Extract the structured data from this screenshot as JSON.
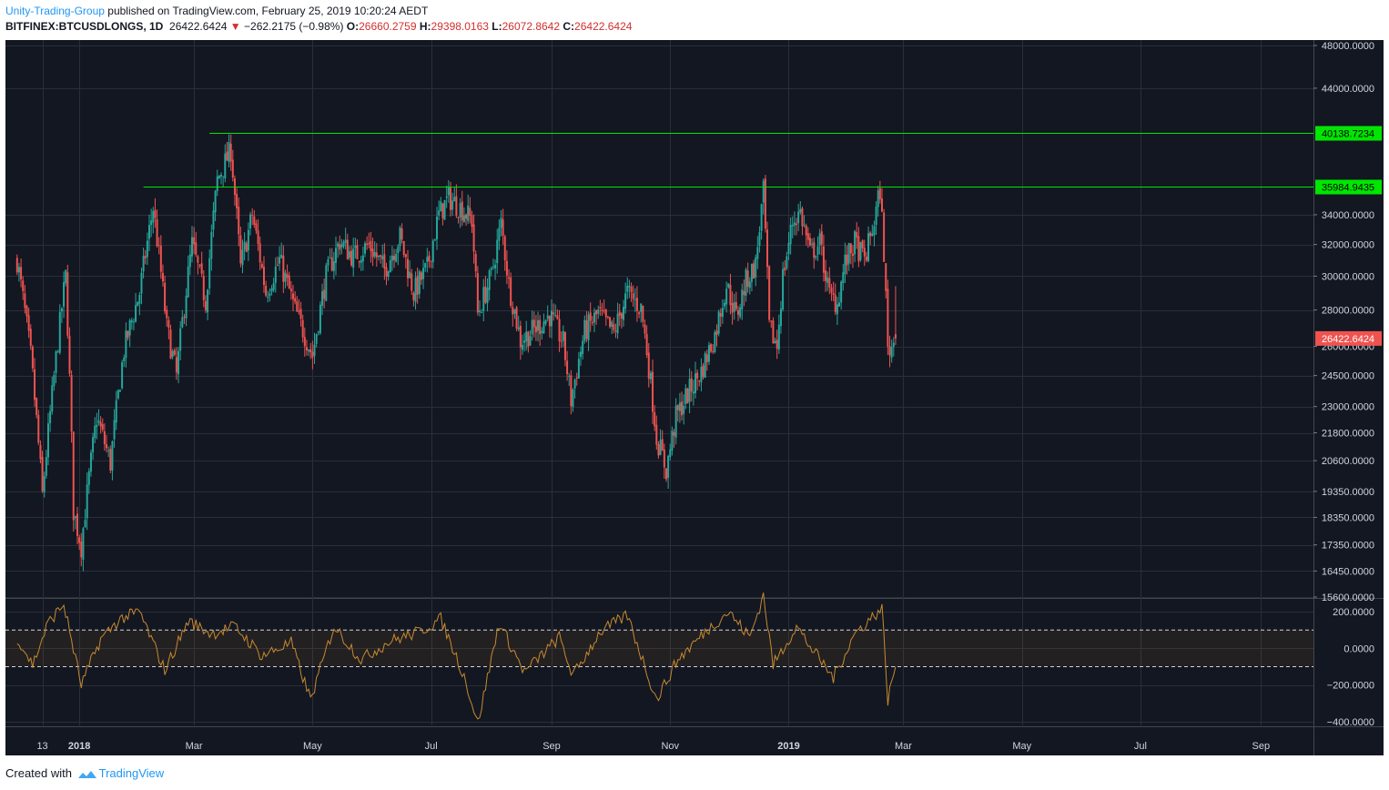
{
  "header": {
    "author": "Unity-Trading-Group",
    "published_text": "published on TradingView.com, February 25, 2019 10:20:24 AEDT",
    "symbol": "BITFINEX:BTCUSDLONGS",
    "interval": ", 1D",
    "last": "26422.6424",
    "change_arrow": "▼",
    "change": "−262.2175 (−0.98%)",
    "o_label": "O:",
    "o_value": "26660.2759",
    "h_label": "H:",
    "h_value": "29398.0163",
    "l_label": "L:",
    "l_value": "26072.8642",
    "c_label": "C:",
    "c_value": "26422.6424"
  },
  "footer": {
    "created_with": "Created with",
    "brand": "TradingView"
  },
  "colors": {
    "background": "#131722",
    "grid": "#2a2e39",
    "up": "#26a69a",
    "down": "#ef5350",
    "level_line": "#00e600",
    "oscillator": "#c68a2e",
    "axis_text": "#d1d4dc"
  },
  "chart_data": [
    {
      "type": "candlestick",
      "symbol": "BITFINEX:BTCUSDLONGS",
      "interval": "1D",
      "x_ticks": [
        "13",
        "2018",
        "Mar",
        "May",
        "Jul",
        "Sep",
        "Nov",
        "2019",
        "Mar",
        "May",
        "Jul",
        "Sep"
      ],
      "y_ticks": [
        "48000.0000",
        "44000.0000",
        "34000.0000",
        "32000.0000",
        "30000.0000",
        "28000.0000",
        "26000.0000",
        "24500.0000",
        "23000.0000",
        "21800.0000",
        "20600.0000",
        "19350.0000",
        "18350.0000",
        "17350.0000",
        "16450.0000",
        "15600.0000"
      ],
      "ylim": [
        15600,
        48000
      ],
      "scale": "log",
      "horizontal_levels": [
        {
          "value": 40138.7234,
          "label": "40138.7234"
        },
        {
          "value": 35984.9435,
          "label": "35984.9435"
        }
      ],
      "last_price": {
        "value": 26422.6424,
        "label": "26422.6424"
      },
      "trend_points": [
        {
          "date": "2017-11-30",
          "close": 31000
        },
        {
          "date": "2017-12-07",
          "close": 25500
        },
        {
          "date": "2017-12-13",
          "close": 19200
        },
        {
          "date": "2017-12-18",
          "close": 23500
        },
        {
          "date": "2017-12-25",
          "close": 30000
        },
        {
          "date": "2017-12-29",
          "close": 18600
        },
        {
          "date": "2018-01-02",
          "close": 17300
        },
        {
          "date": "2018-01-10",
          "close": 22500
        },
        {
          "date": "2018-01-17",
          "close": 20500
        },
        {
          "date": "2018-01-24",
          "close": 25800
        },
        {
          "date": "2018-02-01",
          "close": 29000
        },
        {
          "date": "2018-02-08",
          "close": 34500
        },
        {
          "date": "2018-02-15",
          "close": 27000
        },
        {
          "date": "2018-02-20",
          "close": 24500
        },
        {
          "date": "2018-02-28",
          "close": 32000
        },
        {
          "date": "2018-03-07",
          "close": 28500
        },
        {
          "date": "2018-03-13",
          "close": 36500
        },
        {
          "date": "2018-03-20",
          "close": 38800
        },
        {
          "date": "2018-03-25",
          "close": 30500
        },
        {
          "date": "2018-03-31",
          "close": 34000
        },
        {
          "date": "2018-04-07",
          "close": 29000
        },
        {
          "date": "2018-04-14",
          "close": 31000
        },
        {
          "date": "2018-04-22",
          "close": 28000
        },
        {
          "date": "2018-05-01",
          "close": 25500
        },
        {
          "date": "2018-05-08",
          "close": 30000
        },
        {
          "date": "2018-05-15",
          "close": 32200
        },
        {
          "date": "2018-05-22",
          "close": 31200
        },
        {
          "date": "2018-05-30",
          "close": 32000
        },
        {
          "date": "2018-06-07",
          "close": 30400
        },
        {
          "date": "2018-06-15",
          "close": 32500
        },
        {
          "date": "2018-06-22",
          "close": 29000
        },
        {
          "date": "2018-06-29",
          "close": 30500
        },
        {
          "date": "2018-07-05",
          "close": 34000
        },
        {
          "date": "2018-07-10",
          "close": 35200
        },
        {
          "date": "2018-07-17",
          "close": 34400
        },
        {
          "date": "2018-07-22",
          "close": 33600
        },
        {
          "date": "2018-07-25",
          "close": 27800
        },
        {
          "date": "2018-08-01",
          "close": 30000
        },
        {
          "date": "2018-08-06",
          "close": 33400
        },
        {
          "date": "2018-08-10",
          "close": 29500
        },
        {
          "date": "2018-08-16",
          "close": 26300
        },
        {
          "date": "2018-08-24",
          "close": 27000
        },
        {
          "date": "2018-08-31",
          "close": 27700
        },
        {
          "date": "2018-09-07",
          "close": 26200
        },
        {
          "date": "2018-09-11",
          "close": 23300
        },
        {
          "date": "2018-09-18",
          "close": 26800
        },
        {
          "date": "2018-09-25",
          "close": 27800
        },
        {
          "date": "2018-10-03",
          "close": 26700
        },
        {
          "date": "2018-10-10",
          "close": 29000
        },
        {
          "date": "2018-10-17",
          "close": 28100
        },
        {
          "date": "2018-10-20",
          "close": 25800
        },
        {
          "date": "2018-10-25",
          "close": 21600
        },
        {
          "date": "2018-10-30",
          "close": 20200
        },
        {
          "date": "2018-11-04",
          "close": 22500
        },
        {
          "date": "2018-11-10",
          "close": 23600
        },
        {
          "date": "2018-11-17",
          "close": 24700
        },
        {
          "date": "2018-11-24",
          "close": 26600
        },
        {
          "date": "2018-11-30",
          "close": 29500
        },
        {
          "date": "2018-12-05",
          "close": 27600
        },
        {
          "date": "2018-12-10",
          "close": 29700
        },
        {
          "date": "2018-12-15",
          "close": 30700
        },
        {
          "date": "2018-12-19",
          "close": 35600
        },
        {
          "date": "2018-12-22",
          "close": 27000
        },
        {
          "date": "2018-12-26",
          "close": 26000
        },
        {
          "date": "2018-12-29",
          "close": 30000
        },
        {
          "date": "2019-01-03",
          "close": 33500
        },
        {
          "date": "2019-01-07",
          "close": 34200
        },
        {
          "date": "2019-01-12",
          "close": 31400
        },
        {
          "date": "2019-01-17",
          "close": 32100
        },
        {
          "date": "2019-01-22",
          "close": 28800
        },
        {
          "date": "2019-01-26",
          "close": 28400
        },
        {
          "date": "2019-01-30",
          "close": 30800
        },
        {
          "date": "2019-02-04",
          "close": 32100
        },
        {
          "date": "2019-02-09",
          "close": 31000
        },
        {
          "date": "2019-02-14",
          "close": 33500
        },
        {
          "date": "2019-02-17",
          "close": 35800
        },
        {
          "date": "2019-02-19",
          "close": 31500
        },
        {
          "date": "2019-02-21",
          "close": 25800
        },
        {
          "date": "2019-02-23",
          "close": 26000
        },
        {
          "date": "2019-02-25",
          "close": 26422.6424
        }
      ]
    },
    {
      "type": "line",
      "name": "oscillator",
      "y_ticks": [
        "200.0000",
        "0.0000",
        "−200.0000",
        "−400.0000"
      ],
      "ylim": [
        -420,
        260
      ],
      "band": [
        -100,
        100
      ],
      "trend_points": [
        {
          "date": "2017-11-30",
          "value": 60
        },
        {
          "date": "2017-12-08",
          "value": -90
        },
        {
          "date": "2017-12-16",
          "value": 140
        },
        {
          "date": "2017-12-24",
          "value": 240
        },
        {
          "date": "2018-01-02",
          "value": -200
        },
        {
          "date": "2018-01-12",
          "value": 50
        },
        {
          "date": "2018-01-22",
          "value": 160
        },
        {
          "date": "2018-02-01",
          "value": 200
        },
        {
          "date": "2018-02-14",
          "value": -120
        },
        {
          "date": "2018-02-26",
          "value": 150
        },
        {
          "date": "2018-03-10",
          "value": 80
        },
        {
          "date": "2018-03-22",
          "value": 120
        },
        {
          "date": "2018-04-05",
          "value": -40
        },
        {
          "date": "2018-04-20",
          "value": 30
        },
        {
          "date": "2018-04-30",
          "value": -280
        },
        {
          "date": "2018-05-12",
          "value": 120
        },
        {
          "date": "2018-05-26",
          "value": -60
        },
        {
          "date": "2018-06-10",
          "value": 40
        },
        {
          "date": "2018-06-25",
          "value": 90
        },
        {
          "date": "2018-07-06",
          "value": 160
        },
        {
          "date": "2018-07-18",
          "value": -150
        },
        {
          "date": "2018-07-25",
          "value": -410
        },
        {
          "date": "2018-08-05",
          "value": 140
        },
        {
          "date": "2018-08-18",
          "value": -130
        },
        {
          "date": "2018-09-05",
          "value": 60
        },
        {
          "date": "2018-09-12",
          "value": -150
        },
        {
          "date": "2018-09-26",
          "value": 90
        },
        {
          "date": "2018-10-10",
          "value": 180
        },
        {
          "date": "2018-10-25",
          "value": -280
        },
        {
          "date": "2018-11-05",
          "value": -60
        },
        {
          "date": "2018-11-20",
          "value": 100
        },
        {
          "date": "2018-12-01",
          "value": 200
        },
        {
          "date": "2018-12-12",
          "value": 60
        },
        {
          "date": "2018-12-19",
          "value": 290
        },
        {
          "date": "2018-12-24",
          "value": -90
        },
        {
          "date": "2019-01-05",
          "value": 120
        },
        {
          "date": "2019-01-14",
          "value": -20
        },
        {
          "date": "2019-01-24",
          "value": -160
        },
        {
          "date": "2019-02-04",
          "value": 80
        },
        {
          "date": "2019-02-18",
          "value": 220
        },
        {
          "date": "2019-02-21",
          "value": -280
        },
        {
          "date": "2019-02-25",
          "value": -100
        }
      ]
    }
  ]
}
